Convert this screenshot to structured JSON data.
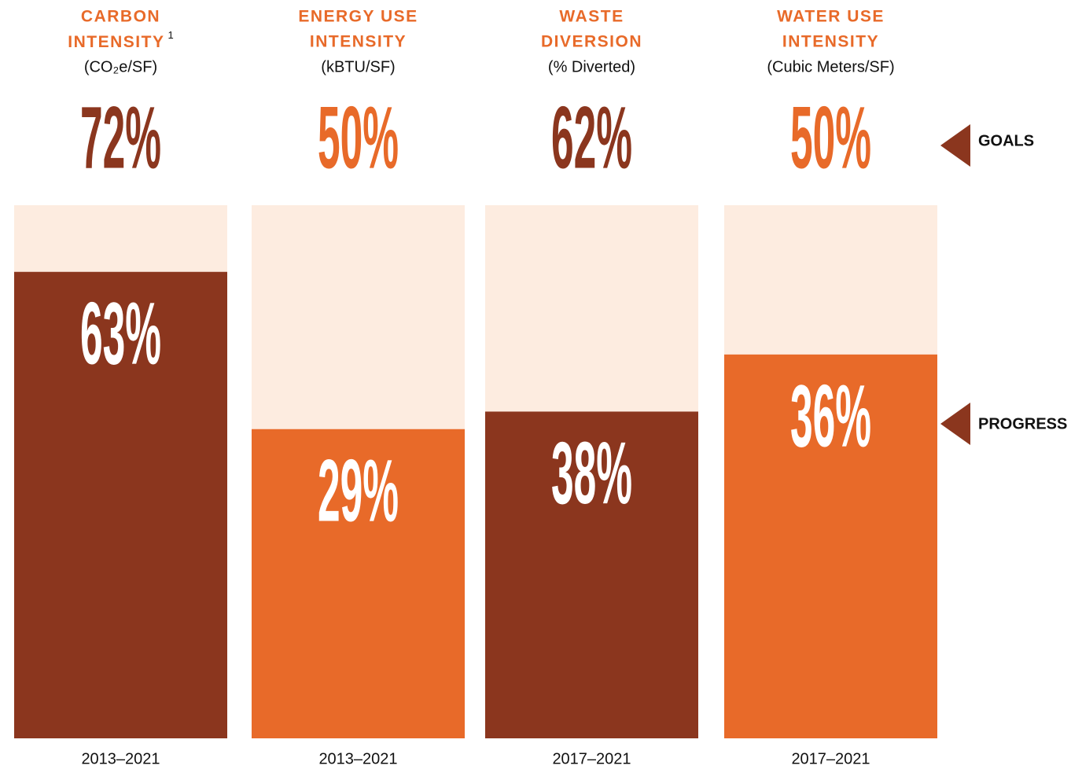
{
  "chart_data": {
    "type": "goal-progress",
    "legend": [
      "GOALS",
      "PROGRESS"
    ],
    "panels": [
      {
        "title": [
          "CARBON",
          "INTENSITY"
        ],
        "footnote": "1",
        "unit": "(CO₂e/SF)",
        "goal": 72,
        "goal_label": "72%",
        "progress": 63,
        "progress_label": "63%",
        "period": "2013–2021",
        "color": "#8b361e"
      },
      {
        "title": [
          "ENERGY USE",
          "INTENSITY"
        ],
        "unit": "(kBTU/SF)",
        "goal": 50,
        "goal_label": "50%",
        "progress": 29,
        "progress_label": "29%",
        "period": "2013–2021",
        "color": "#e86a29"
      },
      {
        "title": [
          "WASTE",
          "DIVERSION"
        ],
        "unit": "(% Diverted)",
        "goal": 62,
        "goal_label": "62%",
        "progress": 38,
        "progress_label": "38%",
        "period": "2017–2021",
        "color": "#8b361e"
      },
      {
        "title": [
          "WATER USE",
          "INTENSITY"
        ],
        "unit": "(Cubic Meters/SF)",
        "goal": 50,
        "goal_label": "50%",
        "progress": 36,
        "progress_label": "36%",
        "period": "2017–2021",
        "color": "#e86a29"
      }
    ]
  }
}
